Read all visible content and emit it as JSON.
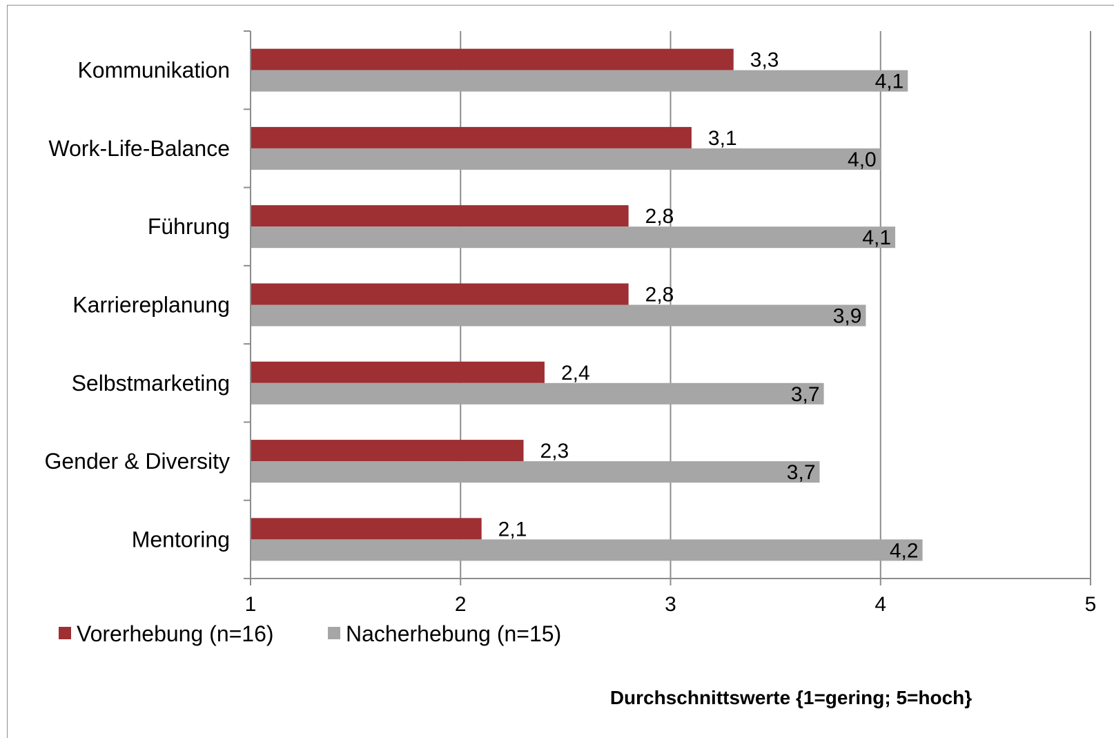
{
  "chart_data": {
    "type": "bar",
    "orientation": "horizontal",
    "categories": [
      "Kommunikation",
      "Work-Life-Balance",
      "Führung",
      "Karriereplanung",
      "Selbstmarketing",
      "Gender & Diversity",
      "Mentoring"
    ],
    "series": [
      {
        "name": "Vorerhebung (n=16)",
        "color": "#9e2f33",
        "values": [
          3.3,
          3.1,
          2.8,
          2.8,
          2.4,
          2.3,
          2.1
        ],
        "labels": [
          "3,3",
          "3,1",
          "2,8",
          "2,8",
          "2,4",
          "2,3",
          "2,1"
        ]
      },
      {
        "name": "Nacherhebung (n=15)",
        "color": "#a6a6a6",
        "values": [
          4.13,
          4.0,
          4.07,
          3.93,
          3.73,
          3.71,
          4.2
        ],
        "labels": [
          "4,1",
          "4,0",
          "4,1",
          "3,9",
          "3,7",
          "3,7",
          "4,2"
        ]
      }
    ],
    "xlim": [
      1,
      5
    ],
    "xticks": [
      "1",
      "2",
      "3",
      "4",
      "5"
    ],
    "xlabel": "Durchschnittswerte {1=gering; 5=hoch}",
    "grid": true,
    "legend": "bottom-left"
  }
}
